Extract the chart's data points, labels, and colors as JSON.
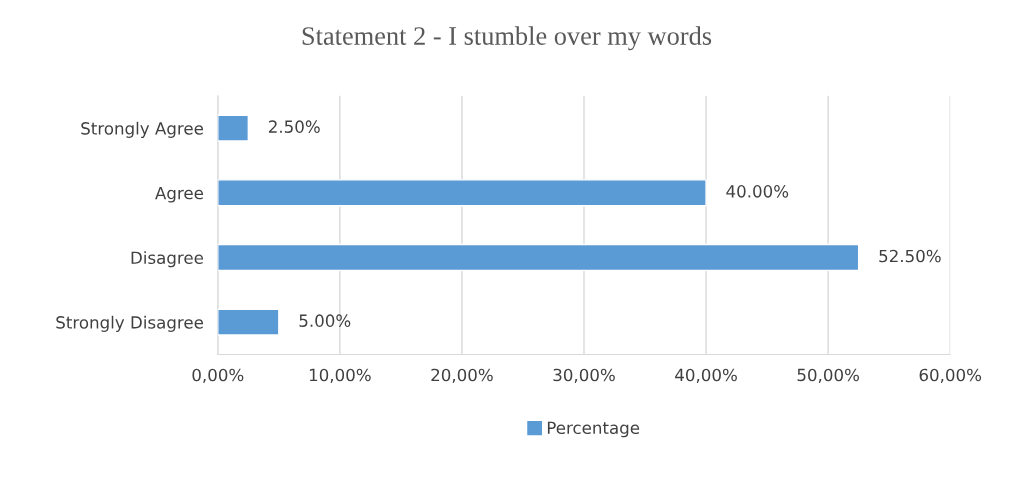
{
  "chart_data": {
    "type": "bar",
    "orientation": "horizontal",
    "title": "Statement 2 - I stumble over my words",
    "categories": [
      "Strongly Agree",
      "Agree",
      "Disagree",
      "Strongly Disagree"
    ],
    "series": [
      {
        "name": "Percentage",
        "color": "#5b9bd5",
        "values": [
          2.5,
          40,
          52.5,
          5
        ],
        "value_labels": [
          "2.50%",
          "40.00%",
          "52.50%",
          "5.00%"
        ]
      }
    ],
    "xlim": [
      0,
      60
    ],
    "xticks": [
      {
        "value": 0,
        "label": "0,00%"
      },
      {
        "value": 10,
        "label": "10,00%"
      },
      {
        "value": 20,
        "label": "20,00%"
      },
      {
        "value": 30,
        "label": "30,00%"
      },
      {
        "value": 40,
        "label": "40,00%"
      },
      {
        "value": 50,
        "label": "50,00%"
      },
      {
        "value": 60,
        "label": "60,00%"
      }
    ],
    "grid": "x",
    "legend": "bottom"
  }
}
